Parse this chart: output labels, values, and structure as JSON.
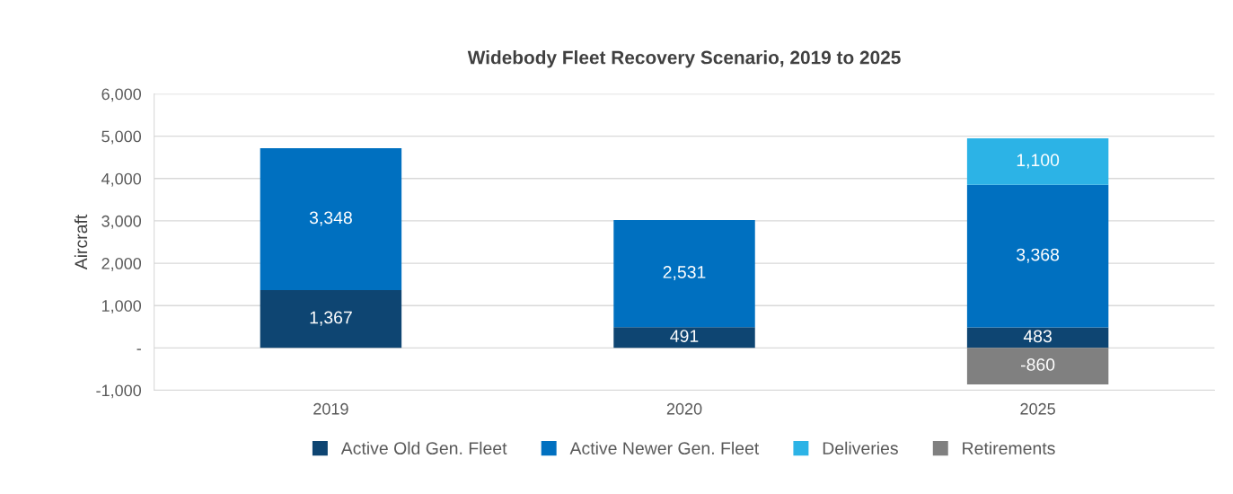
{
  "chart_data": {
    "type": "bar",
    "title": "Widebody Fleet Recovery Scenario, 2019 to 2025",
    "ylabel": "Aircraft",
    "stacked": true,
    "categories": [
      "2019",
      "2020",
      "2025"
    ],
    "series": [
      {
        "name": "Active Old Gen. Fleet",
        "color": "#0e4572",
        "values": [
          1367,
          491,
          483
        ],
        "value_labels": [
          "1,367",
          "491",
          "483"
        ]
      },
      {
        "name": "Active Newer Gen. Fleet",
        "color": "#0070c0",
        "values": [
          3348,
          2531,
          3368
        ],
        "value_labels": [
          "3,348",
          "2,531",
          "3,368"
        ]
      },
      {
        "name": "Deliveries",
        "color": "#2cb3e6",
        "values": [
          null,
          null,
          1100
        ],
        "value_labels": [
          null,
          null,
          "1,100"
        ]
      },
      {
        "name": "Retirements",
        "color": "#808080",
        "values": [
          null,
          null,
          -860
        ],
        "value_labels": [
          null,
          null,
          "-860"
        ]
      }
    ],
    "ylim": [
      -1000,
      6000
    ],
    "yticks": [
      {
        "value": -1000,
        "label": "-1,000"
      },
      {
        "value": 0,
        "label": "-"
      },
      {
        "value": 1000,
        "label": "1,000"
      },
      {
        "value": 2000,
        "label": "2,000"
      },
      {
        "value": 3000,
        "label": "3,000"
      },
      {
        "value": 4000,
        "label": "4,000"
      },
      {
        "value": 5000,
        "label": "5,000"
      },
      {
        "value": 6000,
        "label": "6,000"
      }
    ],
    "grid": "y",
    "legend": "bottom"
  }
}
